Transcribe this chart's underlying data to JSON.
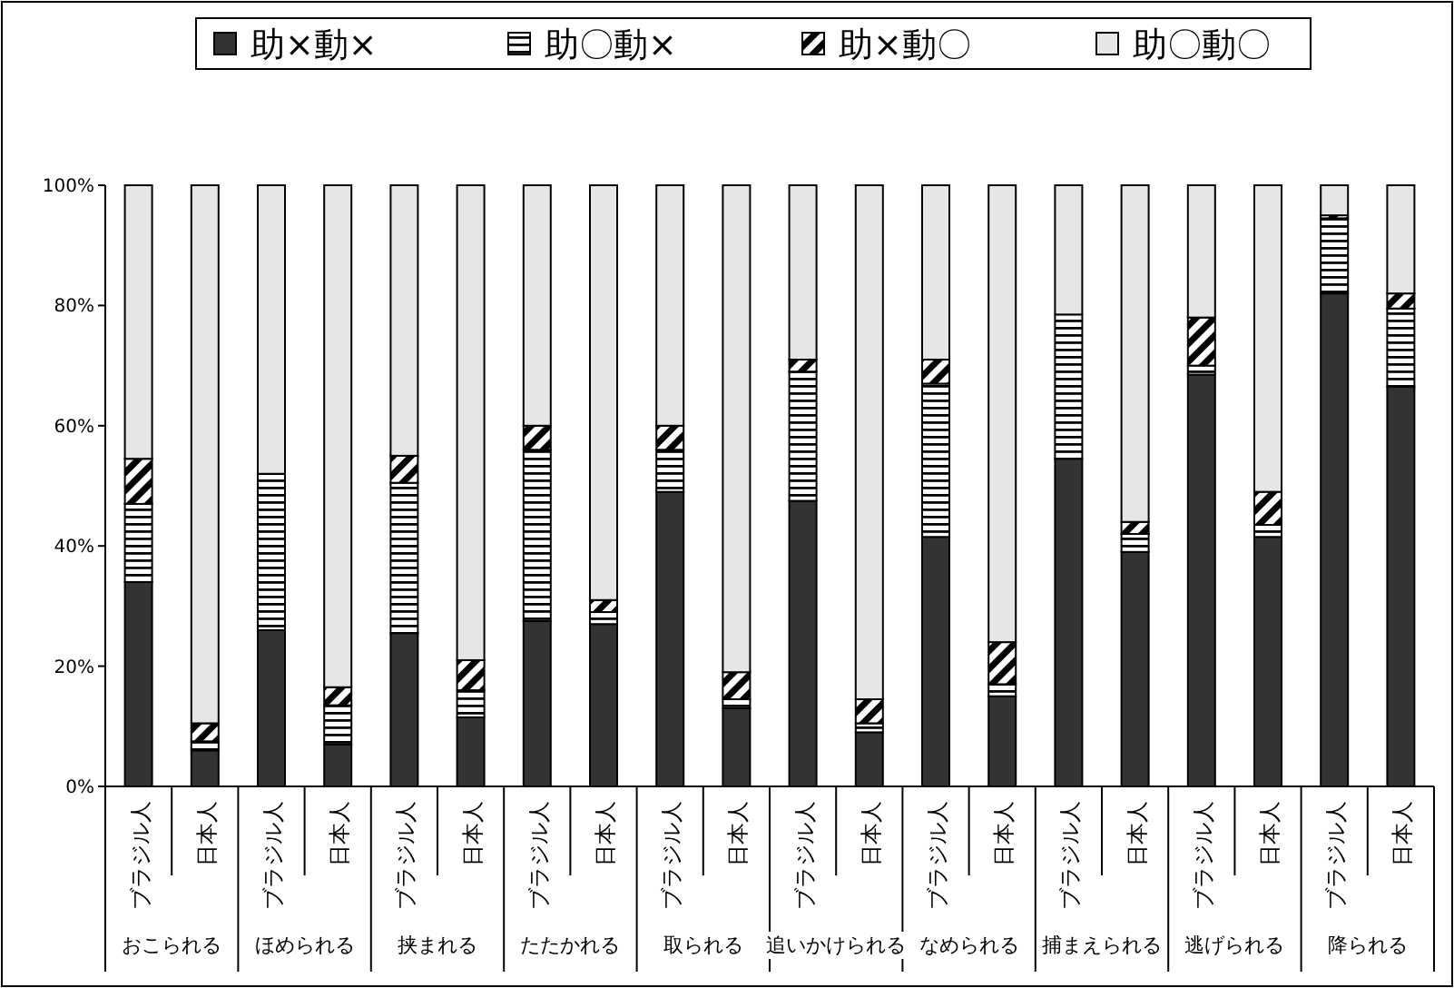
{
  "chart_data": {
    "type": "bar",
    "stacked": true,
    "categories": [
      "ブラジル人",
      "日本人",
      "ブラジル人",
      "日本人",
      "ブラジル人",
      "日本人",
      "ブラジル人",
      "日本人",
      "ブラジル人",
      "日本人",
      "ブラジル人",
      "日本人",
      "ブラジル人",
      "日本人",
      "ブラジル人",
      "日本人",
      "ブラジル人",
      "日本人",
      "ブラジル人",
      "日本人"
    ],
    "annotations": [
      "おこられる",
      "ほめられる",
      "挟まれる",
      "たたかれる",
      "取られる",
      "追いかけられる",
      "なめられる",
      "捕まえられる",
      "逃げられる",
      "降られる"
    ],
    "series": [
      {
        "name": "助×動×",
        "color": "#333333",
        "values": [
          34,
          6,
          26,
          7,
          25.5,
          11.5,
          27.5,
          27,
          49,
          13,
          47.5,
          9,
          41.5,
          15,
          54.5,
          39,
          68.5,
          41.5,
          82,
          66.5
        ]
      },
      {
        "name": "助〇動×",
        "color": "#000000",
        "values": [
          13,
          1.5,
          26,
          6.5,
          25,
          4.5,
          28.5,
          2,
          7,
          1.5,
          21.5,
          1.5,
          25.5,
          2,
          24,
          3,
          1.5,
          2,
          12.5,
          13
        ]
      },
      {
        "name": "助×動〇",
        "color": "#000000",
        "values": [
          7.5,
          3,
          0,
          3,
          4.5,
          5,
          4,
          2,
          4,
          4.5,
          2,
          4,
          4,
          7,
          0,
          2,
          8,
          5.5,
          0.5,
          2.5
        ]
      },
      {
        "name": "助〇動〇",
        "color": "#e6e6e6",
        "values": [
          45.5,
          89.5,
          48,
          83.5,
          45,
          79,
          40,
          69,
          40,
          81,
          29,
          85.5,
          29,
          76,
          21.5,
          56,
          22,
          51,
          5,
          18
        ]
      }
    ],
    "ylim": [
      0,
      100
    ],
    "yticks": [
      {
        "value": 0,
        "label": "0%"
      },
      {
        "value": 20,
        "label": "20%"
      },
      {
        "value": 40,
        "label": "40%"
      },
      {
        "value": 60,
        "label": "60%"
      },
      {
        "value": 80,
        "label": "80%"
      },
      {
        "value": 100,
        "label": "100%"
      }
    ],
    "legend": "top",
    "grid": false
  }
}
